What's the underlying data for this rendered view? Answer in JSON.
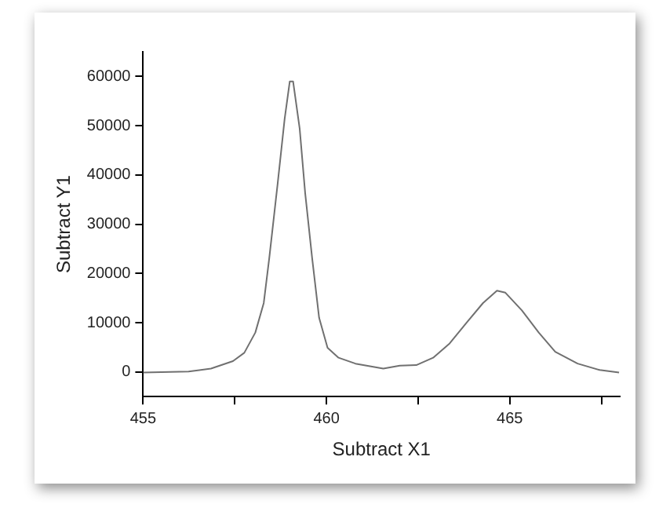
{
  "chart_data": {
    "type": "line",
    "xlabel": "Subtract X1",
    "ylabel": "Subtract Y1",
    "x": [
      455.0,
      456.24,
      456.85,
      457.45,
      457.76,
      458.06,
      458.29,
      458.44,
      458.67,
      458.86,
      459.0,
      459.09,
      459.27,
      459.42,
      459.61,
      459.8,
      460.03,
      460.33,
      460.79,
      461.55,
      462.0,
      462.45,
      462.91,
      463.36,
      463.82,
      464.27,
      464.65,
      464.88,
      465.33,
      465.79,
      466.24,
      466.85,
      467.45,
      467.98
    ],
    "series": [
      {
        "color": "#707070",
        "values": [
          -100,
          100,
          700,
          2200,
          3900,
          8000,
          14000,
          23100,
          38300,
          51400,
          59000,
          59000,
          49400,
          36300,
          23100,
          11000,
          4900,
          2900,
          1700,
          700,
          1300,
          1400,
          2900,
          5800,
          10000,
          14000,
          16500,
          16100,
          12500,
          8000,
          4100,
          1700,
          400,
          -100
        ]
      }
    ],
    "xlim": [
      455,
      468
    ],
    "xticks": [
      455,
      {
        "value": 457.5,
        "label": null
      },
      460,
      {
        "value": 462.5,
        "label": null
      },
      465,
      {
        "value": 467.5,
        "label": null
      }
    ],
    "ylim": [
      -5000,
      65000
    ],
    "yticks": [
      0,
      10000,
      20000,
      30000,
      40000,
      50000,
      60000
    ],
    "grid": false,
    "legend": false,
    "marker": "none",
    "line_style": "solid"
  }
}
